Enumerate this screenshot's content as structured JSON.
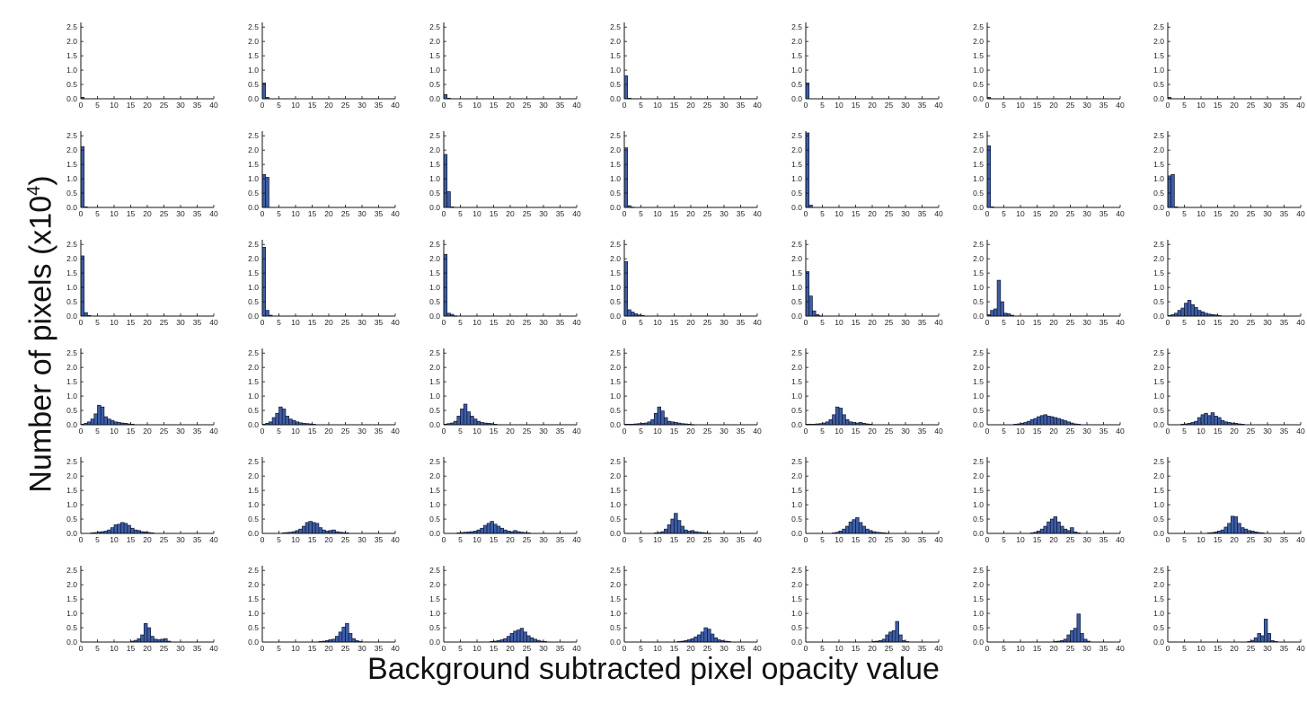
{
  "figure": {
    "ylabel_main": "Number of pixels (x10",
    "ylabel_exp": "4",
    "ylabel_close": ")",
    "xlabel": "Background subtracted pixel opacity value"
  },
  "colors": {
    "bar_fill": "#3d5ea8",
    "bar_stroke": "#0d1630",
    "axis": "#111111",
    "tick_text": "#222222"
  },
  "chart_data": {
    "type": "bar",
    "layout": {
      "rows": 6,
      "cols": 7
    },
    "xlim": [
      0,
      40
    ],
    "ylim": [
      0,
      2.6
    ],
    "xticks": [
      0,
      5,
      10,
      15,
      20,
      25,
      30,
      35,
      40
    ],
    "yticks": [
      0,
      0.5,
      1.0,
      1.5,
      2.0,
      2.5
    ],
    "ytick_labels": [
      "0.0",
      "0.5",
      "1.0",
      "1.5",
      "2.0",
      "2.5"
    ],
    "units": "x10^4 pixels",
    "panels": [
      {
        "bins": [
          0
        ],
        "values": [
          0.05
        ]
      },
      {
        "bins": [
          0,
          1
        ],
        "values": [
          0.55,
          0.05
        ]
      },
      {
        "bins": [
          0,
          1
        ],
        "values": [
          0.15,
          0.02
        ]
      },
      {
        "bins": [
          0,
          1
        ],
        "values": [
          0.8,
          0.02
        ]
      },
      {
        "bins": [
          0
        ],
        "values": [
          0.55
        ]
      },
      {
        "bins": [
          0
        ],
        "values": [
          0.05
        ]
      },
      {
        "bins": [
          0
        ],
        "values": [
          0.05
        ]
      },
      {
        "bins": [
          0,
          1
        ],
        "values": [
          2.12,
          0.02
        ]
      },
      {
        "bins": [
          0,
          1
        ],
        "values": [
          1.15,
          1.05
        ]
      },
      {
        "bins": [
          0,
          1,
          2
        ],
        "values": [
          1.85,
          0.55,
          0.02
        ]
      },
      {
        "bins": [
          0,
          1,
          2
        ],
        "values": [
          2.08,
          0.06,
          0.01
        ]
      },
      {
        "bins": [
          0,
          1
        ],
        "values": [
          2.6,
          0.08
        ]
      },
      {
        "bins": [
          0,
          1
        ],
        "values": [
          2.15,
          0.02
        ]
      },
      {
        "bins": [
          0,
          1,
          2
        ],
        "values": [
          1.1,
          1.15,
          0.02
        ]
      },
      {
        "bins": [
          0,
          1,
          2
        ],
        "values": [
          2.1,
          0.12,
          0.02
        ]
      },
      {
        "bins": [
          0,
          1,
          2
        ],
        "values": [
          2.4,
          0.2,
          0.03
        ]
      },
      {
        "bins": [
          0,
          1,
          2,
          3
        ],
        "values": [
          2.15,
          0.1,
          0.06,
          0.01
        ]
      },
      {
        "bins": [
          0,
          1,
          2,
          3,
          4,
          5
        ],
        "values": [
          1.9,
          0.22,
          0.14,
          0.08,
          0.04,
          0.02
        ]
      },
      {
        "bins": [
          0,
          1,
          2,
          3,
          4
        ],
        "values": [
          1.55,
          0.7,
          0.18,
          0.05,
          0.01
        ]
      },
      {
        "bins": [
          0,
          1,
          2,
          3,
          4,
          5,
          6,
          7
        ],
        "values": [
          0.05,
          0.2,
          0.25,
          1.25,
          0.5,
          0.1,
          0.08,
          0.03
        ]
      },
      {
        "bins": [
          0,
          1,
          2,
          3,
          4,
          5,
          6,
          7,
          8,
          9,
          10,
          11,
          12,
          13,
          14,
          15
        ],
        "values": [
          0.02,
          0.05,
          0.1,
          0.2,
          0.28,
          0.45,
          0.55,
          0.4,
          0.3,
          0.2,
          0.15,
          0.1,
          0.07,
          0.05,
          0.04,
          0.02
        ]
      },
      {
        "bins": [
          0,
          1,
          2,
          3,
          4,
          5,
          6,
          7,
          8,
          9,
          10,
          11,
          12,
          13,
          14,
          15
        ],
        "values": [
          0.02,
          0.05,
          0.1,
          0.2,
          0.38,
          0.68,
          0.62,
          0.28,
          0.2,
          0.15,
          0.1,
          0.08,
          0.06,
          0.05,
          0.03,
          0.02
        ]
      },
      {
        "bins": [
          0,
          1,
          2,
          3,
          4,
          5,
          6,
          7,
          8,
          9,
          10,
          11,
          12,
          13,
          14,
          15
        ],
        "values": [
          0.02,
          0.05,
          0.1,
          0.25,
          0.4,
          0.62,
          0.55,
          0.3,
          0.2,
          0.15,
          0.1,
          0.07,
          0.05,
          0.04,
          0.03,
          0.02
        ]
      },
      {
        "bins": [
          0,
          1,
          2,
          3,
          4,
          5,
          6,
          7,
          8,
          9,
          10,
          11,
          12,
          13,
          14,
          15
        ],
        "values": [
          0.02,
          0.04,
          0.06,
          0.12,
          0.3,
          0.55,
          0.72,
          0.45,
          0.3,
          0.2,
          0.12,
          0.08,
          0.06,
          0.05,
          0.04,
          0.02
        ]
      },
      {
        "bins": [
          0,
          1,
          2,
          3,
          4,
          5,
          6,
          7,
          8,
          9,
          10,
          11,
          12,
          13,
          14,
          15,
          16,
          17,
          18,
          19,
          20
        ],
        "values": [
          0.02,
          0.02,
          0.02,
          0.03,
          0.04,
          0.05,
          0.06,
          0.1,
          0.18,
          0.4,
          0.62,
          0.48,
          0.25,
          0.12,
          0.1,
          0.08,
          0.06,
          0.04,
          0.03,
          0.02,
          0.01
        ]
      },
      {
        "bins": [
          0,
          1,
          2,
          3,
          4,
          5,
          6,
          7,
          8,
          9,
          10,
          11,
          12,
          13,
          14,
          15,
          16,
          17,
          18,
          19
        ],
        "values": [
          0.02,
          0.02,
          0.02,
          0.03,
          0.04,
          0.06,
          0.1,
          0.18,
          0.35,
          0.62,
          0.58,
          0.35,
          0.18,
          0.1,
          0.08,
          0.06,
          0.08,
          0.05,
          0.03,
          0.02
        ]
      },
      {
        "bins": [
          8,
          9,
          10,
          11,
          12,
          13,
          14,
          15,
          16,
          17,
          18,
          19,
          20,
          21,
          22,
          23,
          24,
          25,
          26,
          27
        ],
        "values": [
          0.02,
          0.03,
          0.05,
          0.08,
          0.12,
          0.18,
          0.22,
          0.28,
          0.32,
          0.35,
          0.3,
          0.28,
          0.25,
          0.22,
          0.18,
          0.14,
          0.1,
          0.06,
          0.03,
          0.02
        ]
      },
      {
        "bins": [
          4,
          5,
          6,
          7,
          8,
          9,
          10,
          11,
          12,
          13,
          14,
          15,
          16,
          17,
          18,
          19,
          20,
          21,
          22
        ],
        "values": [
          0.02,
          0.03,
          0.05,
          0.08,
          0.12,
          0.25,
          0.35,
          0.4,
          0.32,
          0.42,
          0.3,
          0.25,
          0.15,
          0.1,
          0.08,
          0.06,
          0.05,
          0.03,
          0.02
        ]
      },
      {
        "bins": [
          3,
          4,
          5,
          6,
          7,
          8,
          9,
          10,
          11,
          12,
          13,
          14,
          15,
          16,
          17,
          18,
          19,
          20,
          21
        ],
        "values": [
          0.02,
          0.03,
          0.05,
          0.06,
          0.08,
          0.12,
          0.2,
          0.3,
          0.32,
          0.38,
          0.35,
          0.28,
          0.18,
          0.12,
          0.1,
          0.06,
          0.05,
          0.03,
          0.02
        ]
      },
      {
        "bins": [
          6,
          7,
          8,
          9,
          10,
          11,
          12,
          13,
          14,
          15,
          16,
          17,
          18,
          19,
          20,
          21,
          22,
          23,
          24,
          25
        ],
        "values": [
          0.02,
          0.03,
          0.04,
          0.06,
          0.1,
          0.15,
          0.25,
          0.38,
          0.42,
          0.38,
          0.35,
          0.2,
          0.12,
          0.08,
          0.1,
          0.12,
          0.06,
          0.04,
          0.03,
          0.02
        ]
      },
      {
        "bins": [
          4,
          5,
          6,
          7,
          8,
          9,
          10,
          11,
          12,
          13,
          14,
          15,
          16,
          17,
          18,
          19,
          20,
          21,
          22,
          23,
          24,
          25
        ],
        "values": [
          0.02,
          0.03,
          0.04,
          0.05,
          0.06,
          0.08,
          0.12,
          0.18,
          0.28,
          0.35,
          0.42,
          0.32,
          0.25,
          0.18,
          0.12,
          0.08,
          0.06,
          0.1,
          0.06,
          0.04,
          0.03,
          0.02
        ]
      },
      {
        "bins": [
          9,
          10,
          11,
          12,
          13,
          14,
          15,
          16,
          17,
          18,
          19,
          20,
          21,
          22,
          23,
          24,
          25
        ],
        "values": [
          0.02,
          0.03,
          0.06,
          0.15,
          0.3,
          0.5,
          0.7,
          0.45,
          0.25,
          0.12,
          0.08,
          0.1,
          0.06,
          0.04,
          0.03,
          0.02,
          0.01
        ]
      },
      {
        "bins": [
          8,
          9,
          10,
          11,
          12,
          13,
          14,
          15,
          16,
          17,
          18,
          19,
          20,
          21,
          22,
          23,
          24
        ],
        "values": [
          0.02,
          0.04,
          0.08,
          0.15,
          0.25,
          0.4,
          0.48,
          0.55,
          0.38,
          0.25,
          0.15,
          0.1,
          0.06,
          0.04,
          0.03,
          0.02,
          0.01
        ]
      },
      {
        "bins": [
          13,
          14,
          15,
          16,
          17,
          18,
          19,
          20,
          21,
          22,
          23,
          24,
          25,
          26,
          27
        ],
        "values": [
          0.02,
          0.04,
          0.08,
          0.15,
          0.25,
          0.4,
          0.5,
          0.58,
          0.4,
          0.25,
          0.15,
          0.1,
          0.2,
          0.05,
          0.02
        ]
      },
      {
        "bins": [
          12,
          13,
          14,
          15,
          16,
          17,
          18,
          19,
          20,
          21,
          22,
          23,
          24,
          25,
          26,
          27,
          28
        ],
        "values": [
          0.02,
          0.03,
          0.05,
          0.08,
          0.12,
          0.22,
          0.35,
          0.6,
          0.58,
          0.35,
          0.2,
          0.15,
          0.1,
          0.08,
          0.05,
          0.03,
          0.02
        ]
      },
      {
        "bins": [
          15,
          16,
          17,
          18,
          19,
          20,
          21,
          22,
          23,
          24,
          25,
          26
        ],
        "values": [
          0.03,
          0.06,
          0.12,
          0.25,
          0.65,
          0.5,
          0.2,
          0.1,
          0.08,
          0.1,
          0.12,
          0.03
        ]
      },
      {
        "bins": [
          17,
          18,
          19,
          20,
          21,
          22,
          23,
          24,
          25,
          26,
          27,
          28,
          29
        ],
        "values": [
          0.02,
          0.03,
          0.05,
          0.08,
          0.1,
          0.2,
          0.35,
          0.52,
          0.65,
          0.3,
          0.12,
          0.05,
          0.02
        ]
      },
      {
        "bins": [
          14,
          15,
          16,
          17,
          18,
          19,
          20,
          21,
          22,
          23,
          24,
          25,
          26,
          27,
          28,
          29,
          30
        ],
        "values": [
          0.02,
          0.03,
          0.05,
          0.08,
          0.12,
          0.2,
          0.3,
          0.38,
          0.42,
          0.48,
          0.35,
          0.22,
          0.15,
          0.1,
          0.06,
          0.03,
          0.02
        ]
      },
      {
        "bins": [
          16,
          17,
          18,
          19,
          20,
          21,
          22,
          23,
          24,
          25,
          26,
          27,
          28,
          29,
          30,
          31
        ],
        "values": [
          0.02,
          0.03,
          0.05,
          0.08,
          0.12,
          0.18,
          0.25,
          0.35,
          0.5,
          0.45,
          0.28,
          0.15,
          0.08,
          0.05,
          0.03,
          0.02
        ]
      },
      {
        "bins": [
          20,
          21,
          22,
          23,
          24,
          25,
          26,
          27,
          28,
          29,
          30
        ],
        "values": [
          0.02,
          0.03,
          0.05,
          0.1,
          0.25,
          0.35,
          0.4,
          0.72,
          0.25,
          0.05,
          0.02
        ]
      },
      {
        "bins": [
          20,
          21,
          22,
          23,
          24,
          25,
          26,
          27,
          28,
          29,
          30
        ],
        "values": [
          0.02,
          0.03,
          0.05,
          0.1,
          0.25,
          0.4,
          0.48,
          0.98,
          0.3,
          0.1,
          0.03
        ]
      },
      {
        "bins": [
          24,
          25,
          26,
          27,
          28,
          29,
          30,
          31,
          32
        ],
        "values": [
          0.02,
          0.06,
          0.15,
          0.3,
          0.22,
          0.8,
          0.3,
          0.05,
          0.02
        ]
      }
    ]
  }
}
